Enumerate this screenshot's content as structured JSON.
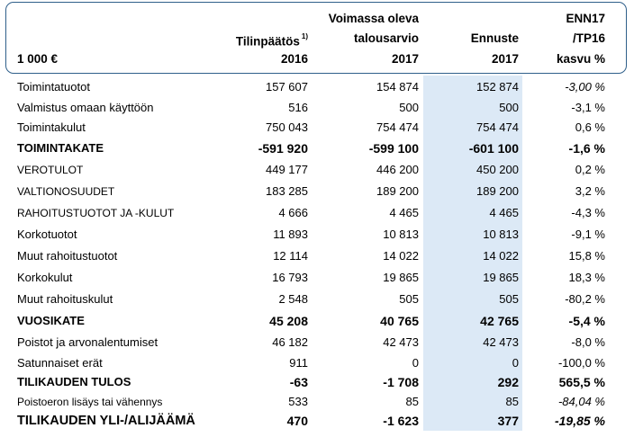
{
  "header": {
    "col1": {
      "line1": "Tilinpäätös",
      "sup": "1)",
      "line2": "2016"
    },
    "col2": {
      "line0": "Voimassa oleva",
      "line1": "talousarvio",
      "line2": "2017"
    },
    "col3": {
      "line1": "Ennuste",
      "line2": "2017"
    },
    "col4": {
      "line0": "ENN17",
      "line1": "/TP16",
      "line2": "kasvu %"
    },
    "unit": "1 000 €"
  },
  "colors": {
    "border": "#2f5f8a",
    "forecast_bg": "#dce9f6"
  },
  "rows": [
    {
      "label": "Toimintatuotot",
      "tp2016": "157 607",
      "ta2017": "154 874",
      "enn2017": "152 874",
      "kasvu": "-3,00 %"
    },
    {
      "label": "Valmistus omaan käyttöön",
      "tp2016": "516",
      "ta2017": "500",
      "enn2017": "500",
      "kasvu": "-3,1 %"
    },
    {
      "label": "Toimintakulut",
      "tp2016": "750 043",
      "ta2017": "754 474",
      "enn2017": "754 474",
      "kasvu": "0,6 %"
    },
    {
      "label": "TOIMINTAKATE",
      "tp2016": "-591 920",
      "ta2017": "-599 100",
      "enn2017": "-601 100",
      "kasvu": "-1,6 %"
    },
    {
      "label": "VEROTULOT",
      "tp2016": "449 177",
      "ta2017": "446 200",
      "enn2017": "450 200",
      "kasvu": "0,2 %"
    },
    {
      "label": "VALTIONOSUUDET",
      "tp2016": "183 285",
      "ta2017": "189 200",
      "enn2017": "189 200",
      "kasvu": "3,2 %"
    },
    {
      "label": "RAHOITUSTUOTOT JA -KULUT",
      "tp2016": "4 666",
      "ta2017": "4 465",
      "enn2017": "4 465",
      "kasvu": "-4,3 %"
    },
    {
      "label": "Korkotuotot",
      "tp2016": "11 893",
      "ta2017": "10 813",
      "enn2017": "10 813",
      "kasvu": "-9,1 %"
    },
    {
      "label": "Muut rahoitustuotot",
      "tp2016": "12 114",
      "ta2017": "14 022",
      "enn2017": "14 022",
      "kasvu": "15,8 %"
    },
    {
      "label": "Korkokulut",
      "tp2016": "16 793",
      "ta2017": "19 865",
      "enn2017": "19 865",
      "kasvu": "18,3 %"
    },
    {
      "label": "Muut rahoituskulut",
      "tp2016": "2 548",
      "ta2017": "505",
      "enn2017": "505",
      "kasvu": "-80,2 %"
    },
    {
      "label": "VUOSIKATE",
      "tp2016": "45 208",
      "ta2017": "40 765",
      "enn2017": "42 765",
      "kasvu": "-5,4 %"
    },
    {
      "label": "Poistot ja arvonalentumiset",
      "tp2016": "46 182",
      "ta2017": "42 473",
      "enn2017": "42 473",
      "kasvu": "-8,0 %"
    },
    {
      "label": "Satunnaiset erät",
      "tp2016": "911",
      "ta2017": "0",
      "enn2017": "0",
      "kasvu": "-100,0 %"
    },
    {
      "label": "TILIKAUDEN TULOS",
      "tp2016": "-63",
      "ta2017": "-1 708",
      "enn2017": "292",
      "kasvu": "565,5 %"
    },
    {
      "label": "Poistoeron lisäys tai vähennys",
      "tp2016": "533",
      "ta2017": "85",
      "enn2017": "85",
      "kasvu": "-84,04 %"
    },
    {
      "label": "TILIKAUDEN YLI-/ALIJÄÄMÄ",
      "tp2016": "470",
      "ta2017": "-1 623",
      "enn2017": "377",
      "kasvu": "-19,85 %"
    }
  ]
}
